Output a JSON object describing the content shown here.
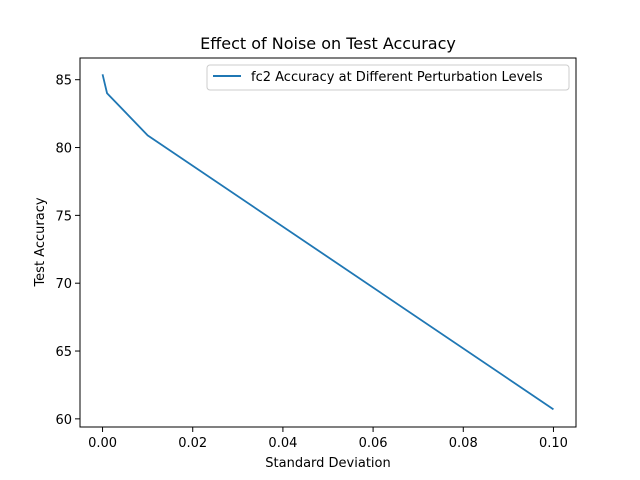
{
  "chart_data": {
    "type": "line",
    "title": "Effect of Noise on Test Accuracy",
    "xlabel": "Standard Deviation",
    "ylabel": "Test Accuracy",
    "xlim": [
      -0.005,
      0.105
    ],
    "ylim": [
      59.4,
      86.6
    ],
    "x_ticks": [
      0.0,
      0.02,
      0.04,
      0.06,
      0.08,
      0.1
    ],
    "x_tick_labels": [
      "0.00",
      "0.02",
      "0.04",
      "0.06",
      "0.08",
      "0.10"
    ],
    "y_ticks": [
      60,
      65,
      70,
      75,
      80,
      85
    ],
    "y_tick_labels": [
      "60",
      "65",
      "70",
      "75",
      "80",
      "85"
    ],
    "grid": false,
    "legend_position": "top-right",
    "series": [
      {
        "name": "fc2 Accuracy at Different Perturbation Levels",
        "color": "#1f77b4",
        "x": [
          0.0,
          0.001,
          0.01,
          0.1
        ],
        "y": [
          85.4,
          84.0,
          80.9,
          60.7
        ]
      }
    ]
  }
}
